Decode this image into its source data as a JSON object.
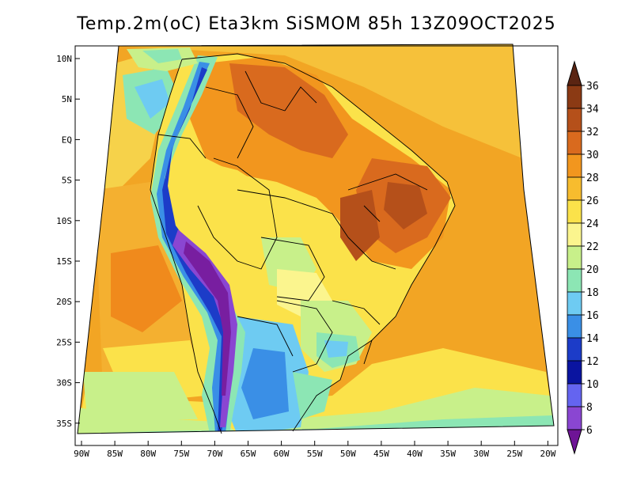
{
  "title": "Temp.2m(oC) Eta3km SiSMOM 85h 13Z09OCT2025",
  "axes": {
    "lat_labels": [
      "10N",
      "5N",
      "EQ",
      "5S",
      "10S",
      "15S",
      "20S",
      "25S",
      "30S",
      "35S"
    ],
    "lat_values": [
      10,
      5,
      0,
      -5,
      -10,
      -15,
      -20,
      -25,
      -30,
      -35
    ],
    "lon_labels": [
      "90W",
      "85W",
      "80W",
      "75W",
      "70W",
      "65W",
      "60W",
      "55W",
      "50W",
      "45W",
      "40W",
      "35W",
      "30W",
      "25W",
      "20W"
    ],
    "lon_values": [
      -90,
      -85,
      -80,
      -75,
      -70,
      -65,
      -60,
      -55,
      -50,
      -45,
      -40,
      -35,
      -30,
      -25,
      -20
    ]
  },
  "colorbar": {
    "labels": [
      "36",
      "34",
      "32",
      "30",
      "28",
      "26",
      "24",
      "22",
      "20",
      "18",
      "16",
      "14",
      "12",
      "10",
      "8",
      "6"
    ],
    "colors": [
      "#6b2a10",
      "#8b3a14",
      "#b5501a",
      "#d96a1e",
      "#f2961e",
      "#f7bc2e",
      "#fbe24a",
      "#fbf58e",
      "#c8f08a",
      "#8ce6b4",
      "#6ecbf2",
      "#3a8fe6",
      "#1c3cc8",
      "#0a14a0",
      "#6464f0",
      "#8a46d2",
      "#b464dc",
      "#781ea0"
    ],
    "top_color": "#5a2412",
    "bottom_color": "#6e1496"
  }
}
